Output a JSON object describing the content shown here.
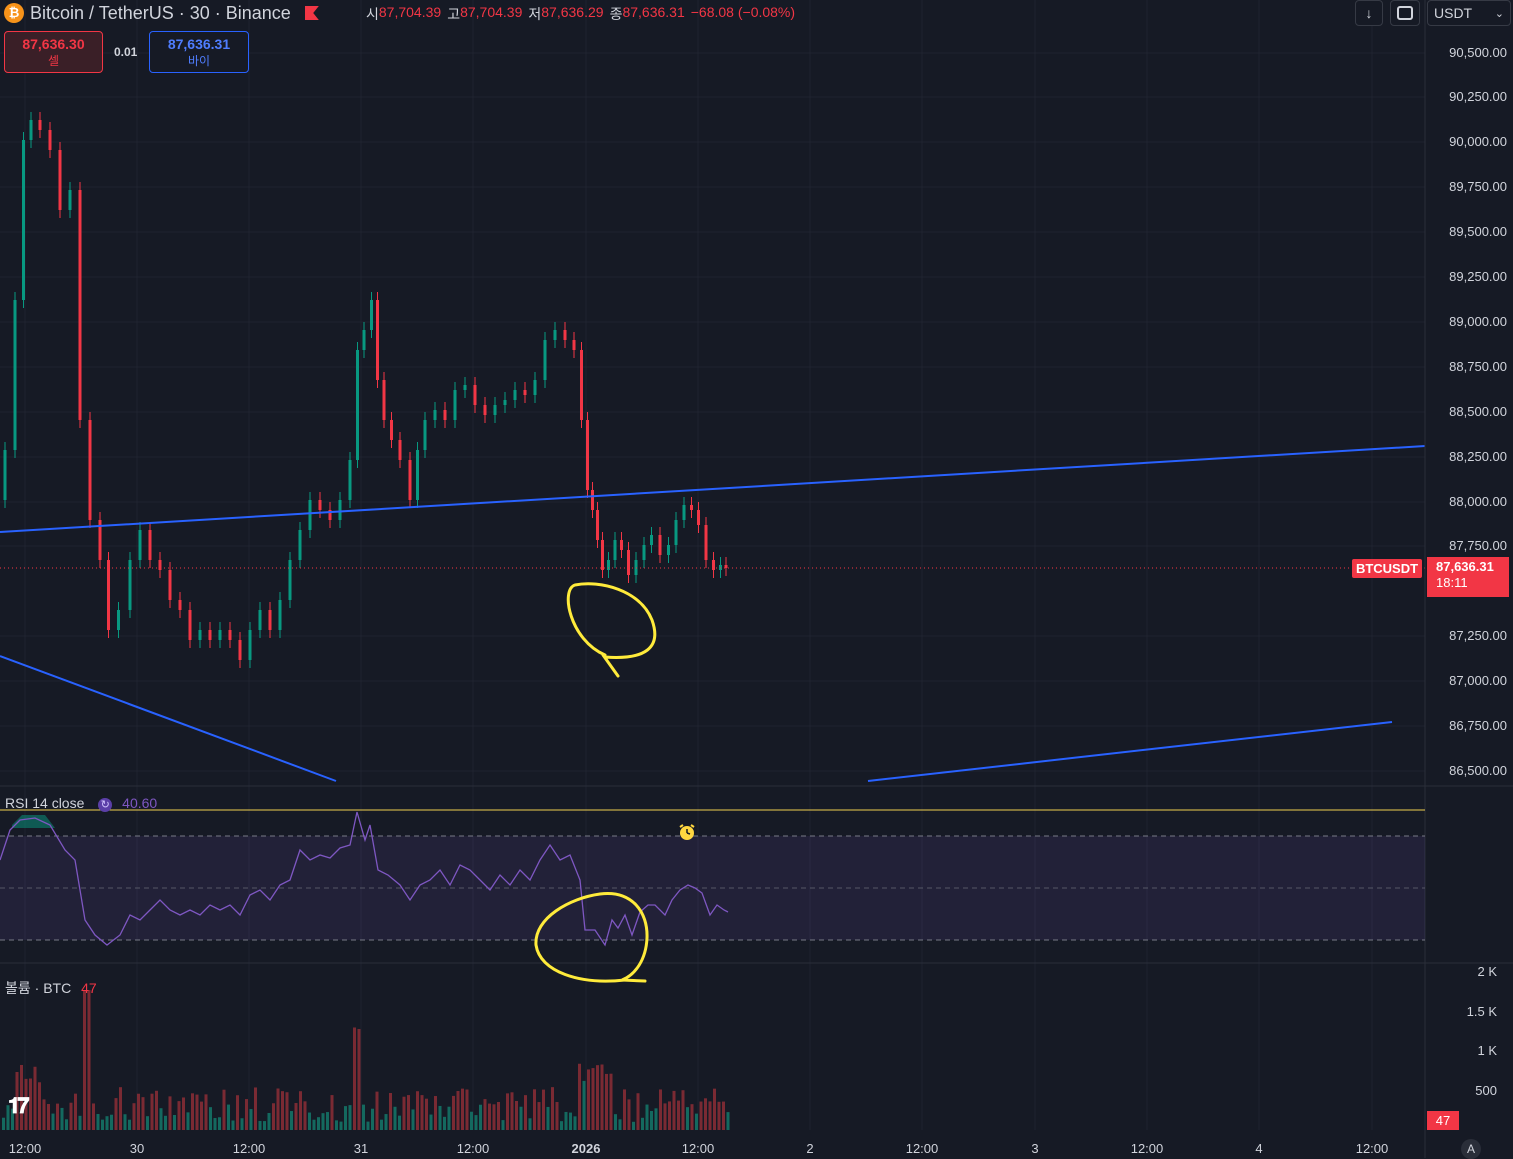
{
  "header": {
    "symbol": "Bitcoin / TetherUS · 30 · Binance",
    "ohlc": [
      {
        "label": "시",
        "value": "87,704.39"
      },
      {
        "label": "고",
        "value": "87,704.39"
      },
      {
        "label": "저",
        "value": "87,636.29"
      },
      {
        "label": "종",
        "value": "87,636.31"
      }
    ],
    "change": "−68.08 (−0.08%)",
    "currency": "USDT"
  },
  "trade": {
    "sell_price": "87,636.30",
    "sell_label": "셀",
    "spread": "0.01",
    "buy_price": "87,636.31",
    "buy_label": "바이"
  },
  "price_axis": [
    "90,500.00",
    "90,250.00",
    "90,000.00",
    "89,750.00",
    "89,500.00",
    "89,250.00",
    "89,000.00",
    "88,750.00",
    "88,500.00",
    "88,250.00",
    "88,000.00",
    "87,750.00",
    "87,250.00",
    "87,000.00",
    "86,750.00",
    "86,500.00"
  ],
  "current": {
    "symbol_tag": "BTCUSDT",
    "price": "87,636.31",
    "countdown": "18:11"
  },
  "rsi": {
    "label": "RSI 14 close",
    "value": "40.60"
  },
  "volume": {
    "label": "볼륨 · BTC",
    "value": "47",
    "axis": [
      "2 K",
      "1.5 K",
      "1 K",
      "500"
    ],
    "current_tag": "47"
  },
  "time_axis": [
    "12:00",
    "30",
    "12:00",
    "31",
    "12:00",
    "2026",
    "12:00",
    "2",
    "12:00",
    "3",
    "12:00",
    "4",
    "12:00"
  ],
  "corner_label": "A",
  "colors": {
    "up": "#089981",
    "down": "#f23645",
    "trendline": "#2962ff",
    "rsi": "#7e57c2",
    "highlight": "#ffeb3b",
    "bg": "#161a25"
  },
  "icons": [
    "bitcoin-icon",
    "flag-icon",
    "download-icon",
    "fullscreen-icon",
    "chevron-down-icon",
    "rsi-cycle-icon",
    "alarm-icon",
    "tradingview-logo-icon"
  ]
}
